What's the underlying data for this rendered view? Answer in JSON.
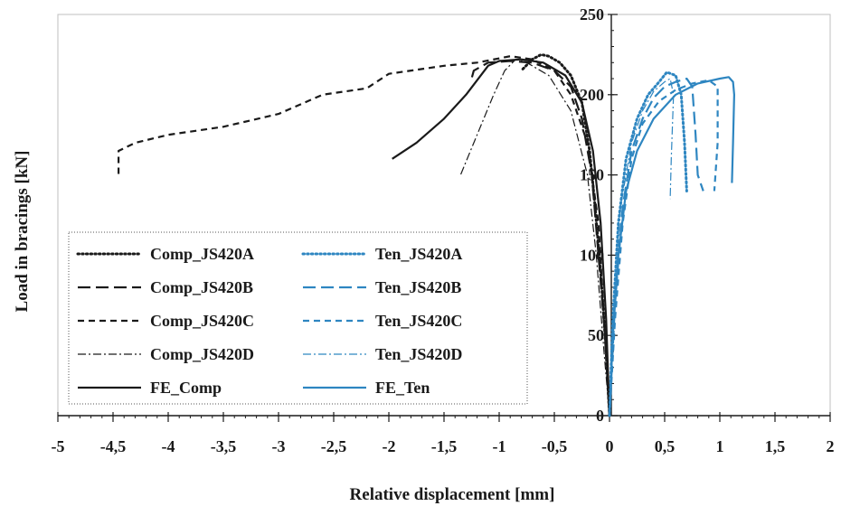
{
  "chart_data": {
    "type": "line",
    "xlabel": "Relative displacement [mm]",
    "ylabel": "Load in bracings [kN]",
    "xlim": [
      -5,
      2
    ],
    "ylim": [
      0,
      250
    ],
    "x_ticks": [
      "-5",
      "-4,5",
      "-4",
      "-3,5",
      "-3",
      "-2,5",
      "-2",
      "-1,5",
      "-1",
      "-0,5",
      "0",
      "0,5",
      "1",
      "1,5",
      "2"
    ],
    "x_tick_values": [
      -5,
      -4.5,
      -4,
      -3.5,
      -3,
      -2.5,
      -2,
      -1.5,
      -1,
      -0.5,
      0,
      0.5,
      1,
      1.5,
      2
    ],
    "y_ticks": [
      "0",
      "50",
      "100",
      "150",
      "200",
      "250"
    ],
    "y_tick_values": [
      0,
      50,
      100,
      150,
      200,
      250
    ],
    "grid": false,
    "legend_position": "bottom-left",
    "colors": {
      "comp": "#1a1a1a",
      "ten": "#2e86c1"
    },
    "series": [
      {
        "name": "Comp_JS420A",
        "color": "#1a1a1a",
        "dash": "dot",
        "points": [
          [
            0,
            0
          ],
          [
            -0.03,
            40
          ],
          [
            -0.08,
            90
          ],
          [
            -0.13,
            130
          ],
          [
            -0.18,
            165
          ],
          [
            -0.25,
            195
          ],
          [
            -0.35,
            212
          ],
          [
            -0.45,
            220
          ],
          [
            -0.55,
            224
          ],
          [
            -0.62,
            225
          ],
          [
            -0.7,
            222
          ],
          [
            -0.8,
            215
          ]
        ]
      },
      {
        "name": "Comp_JS420B",
        "color": "#1a1a1a",
        "dash": "longdash",
        "points": [
          [
            0,
            0
          ],
          [
            -0.04,
            50
          ],
          [
            -0.1,
            100
          ],
          [
            -0.16,
            150
          ],
          [
            -0.25,
            185
          ],
          [
            -0.35,
            205
          ],
          [
            -0.5,
            215
          ],
          [
            -0.7,
            220
          ],
          [
            -0.9,
            221
          ],
          [
            -1.1,
            220
          ],
          [
            -1.23,
            215
          ],
          [
            -1.25,
            210
          ]
        ]
      },
      {
        "name": "Comp_JS420C",
        "color": "#1a1a1a",
        "dash": "dash",
        "points": [
          [
            0,
            0
          ],
          [
            -0.05,
            60
          ],
          [
            -0.1,
            120
          ],
          [
            -0.2,
            170
          ],
          [
            -0.35,
            200
          ],
          [
            -0.5,
            215
          ],
          [
            -0.7,
            222
          ],
          [
            -0.9,
            224
          ],
          [
            -1.2,
            220
          ],
          [
            -1.5,
            218
          ],
          [
            -2.0,
            213
          ],
          [
            -2.2,
            204
          ],
          [
            -2.6,
            200
          ],
          [
            -3.0,
            188
          ],
          [
            -3.5,
            180
          ],
          [
            -4.0,
            175
          ],
          [
            -4.3,
            170
          ],
          [
            -4.45,
            165
          ],
          [
            -4.45,
            150
          ]
        ]
      },
      {
        "name": "Comp_JS420D",
        "color": "#1a1a1a",
        "dash": "dashdot",
        "points": [
          [
            0,
            0
          ],
          [
            -0.05,
            40
          ],
          [
            -0.12,
            100
          ],
          [
            -0.2,
            150
          ],
          [
            -0.35,
            190
          ],
          [
            -0.55,
            212
          ],
          [
            -0.75,
            220
          ],
          [
            -0.85,
            222
          ],
          [
            -0.95,
            215
          ],
          [
            -1.05,
            200
          ],
          [
            -1.2,
            175
          ],
          [
            -1.35,
            150
          ]
        ]
      },
      {
        "name": "FE_Comp",
        "color": "#1a1a1a",
        "dash": "solid",
        "points": [
          [
            0,
            0
          ],
          [
            -0.03,
            60
          ],
          [
            -0.08,
            120
          ],
          [
            -0.15,
            165
          ],
          [
            -0.25,
            195
          ],
          [
            -0.4,
            212
          ],
          [
            -0.6,
            220
          ],
          [
            -0.8,
            222
          ],
          [
            -1.0,
            221
          ],
          [
            -1.1,
            218
          ],
          [
            -1.3,
            200
          ],
          [
            -1.5,
            185
          ],
          [
            -1.75,
            170
          ],
          [
            -1.97,
            160
          ]
        ]
      },
      {
        "name": "Ten_JS420A",
        "color": "#2e86c1",
        "dash": "dot",
        "points": [
          [
            0,
            0
          ],
          [
            0.03,
            60
          ],
          [
            0.08,
            120
          ],
          [
            0.15,
            160
          ],
          [
            0.25,
            185
          ],
          [
            0.35,
            200
          ],
          [
            0.45,
            208
          ],
          [
            0.52,
            214
          ],
          [
            0.6,
            212
          ],
          [
            0.65,
            200
          ],
          [
            0.68,
            170
          ],
          [
            0.7,
            140
          ]
        ]
      },
      {
        "name": "Ten_JS420B",
        "color": "#2e86c1",
        "dash": "longdash",
        "points": [
          [
            0,
            0
          ],
          [
            0.05,
            70
          ],
          [
            0.12,
            130
          ],
          [
            0.2,
            165
          ],
          [
            0.3,
            185
          ],
          [
            0.4,
            198
          ],
          [
            0.5,
            205
          ],
          [
            0.6,
            208
          ],
          [
            0.7,
            210
          ],
          [
            0.75,
            205
          ],
          [
            0.78,
            175
          ],
          [
            0.8,
            150
          ],
          [
            0.85,
            140
          ]
        ]
      },
      {
        "name": "Ten_JS420C",
        "color": "#2e86c1",
        "dash": "dash",
        "points": [
          [
            0,
            0
          ],
          [
            0.05,
            60
          ],
          [
            0.12,
            120
          ],
          [
            0.2,
            160
          ],
          [
            0.3,
            182
          ],
          [
            0.45,
            196
          ],
          [
            0.6,
            203
          ],
          [
            0.75,
            207
          ],
          [
            0.9,
            209
          ],
          [
            0.98,
            205
          ],
          [
            0.98,
            170
          ],
          [
            0.95,
            140
          ]
        ]
      },
      {
        "name": "Ten_JS420D",
        "color": "#2e86c1",
        "dash": "dashdot",
        "points": [
          [
            0,
            0
          ],
          [
            0.05,
            70
          ],
          [
            0.1,
            130
          ],
          [
            0.2,
            170
          ],
          [
            0.3,
            190
          ],
          [
            0.4,
            202
          ],
          [
            0.5,
            208
          ],
          [
            0.55,
            210
          ],
          [
            0.58,
            200
          ],
          [
            0.56,
            160
          ],
          [
            0.55,
            135
          ]
        ]
      },
      {
        "name": "FE_Ten",
        "color": "#2e86c1",
        "dash": "solid",
        "points": [
          [
            0,
            0
          ],
          [
            0.03,
            50
          ],
          [
            0.08,
            100
          ],
          [
            0.15,
            140
          ],
          [
            0.25,
            165
          ],
          [
            0.4,
            185
          ],
          [
            0.6,
            200
          ],
          [
            0.8,
            207
          ],
          [
            1.0,
            210
          ],
          [
            1.08,
            211
          ],
          [
            1.12,
            208
          ],
          [
            1.13,
            200
          ],
          [
            1.12,
            170
          ],
          [
            1.11,
            145
          ]
        ]
      }
    ]
  }
}
